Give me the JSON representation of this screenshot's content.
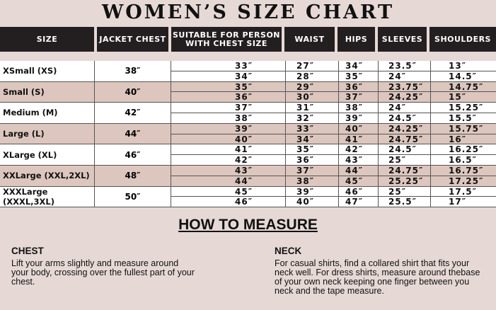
{
  "title": "WOMEN’S SIZE CHART",
  "headers": [
    "SIZE",
    "JACKET CHEST",
    "SUITABLE FOR PERSON WITH CHEST SIZE",
    "WAIST",
    "HIPS",
    "SLEEVES",
    "SHOULDERS"
  ],
  "rows": [
    {
      "size": "XSmall (XS)",
      "jacket": "38″",
      "sub": [
        [
          "33″",
          "27″",
          "34″",
          "23.5″",
          "13″"
        ],
        [
          "34″",
          "28″",
          "35″",
          "24″",
          "14.5″"
        ]
      ]
    },
    {
      "size": "Small (S)",
      "jacket": "40″",
      "sub": [
        [
          "35″",
          "29″",
          "36″",
          "23.75″",
          "14.75″"
        ],
        [
          "36″",
          "30″",
          "37″",
          "24.25″",
          "15″"
        ]
      ]
    },
    {
      "size": "Medium (M)",
      "jacket": "42″",
      "sub": [
        [
          "37″",
          "31″",
          "38″",
          "24″",
          "15.25″"
        ],
        [
          "38″",
          "32″",
          "39″",
          "24.5″",
          "15.5″"
        ]
      ]
    },
    {
      "size": "Large (L)",
      "jacket": "44″",
      "sub": [
        [
          "39″",
          "33″",
          "40″",
          "24.25″",
          "15.75″"
        ],
        [
          "40″",
          "34″",
          "41″",
          "24.75″",
          "16″"
        ]
      ]
    },
    {
      "size": "XLarge (XL)",
      "jacket": "46″",
      "sub": [
        [
          "41″",
          "35″",
          "42″",
          "24.5″",
          "16.25″"
        ],
        [
          "42″",
          "36″",
          "43″",
          "25″",
          "16.5″"
        ]
      ]
    },
    {
      "size": "XXLarge (XXL,2XL)",
      "jacket": "48″",
      "sub": [
        [
          "43″",
          "37″",
          "44″",
          "24.75″",
          "16.75″"
        ],
        [
          "44″",
          "38″",
          "45″",
          "25.25″",
          "17.25″"
        ]
      ]
    },
    {
      "size": "XXXLarge (XXXL,3XL)",
      "jacket": "50″",
      "sub": [
        [
          "45″",
          "39″",
          "46″",
          "25″",
          "17.5″"
        ],
        [
          "46″",
          "40″",
          "47″",
          "25.5″",
          "17″"
        ]
      ]
    }
  ],
  "how_to": {
    "title": "HOW TO MEASURE",
    "chest": {
      "heading": "CHEST",
      "text": "Lift your arms slightly and measure around your body, crossing over the fullest part of your chest."
    },
    "neck": {
      "heading": "NECK",
      "text": "For casual shirts, find a collared shirt that fits your neck well. For dress shirts, measure around thebase of your own neck keeping one finger between you neck and the tape measure."
    }
  }
}
